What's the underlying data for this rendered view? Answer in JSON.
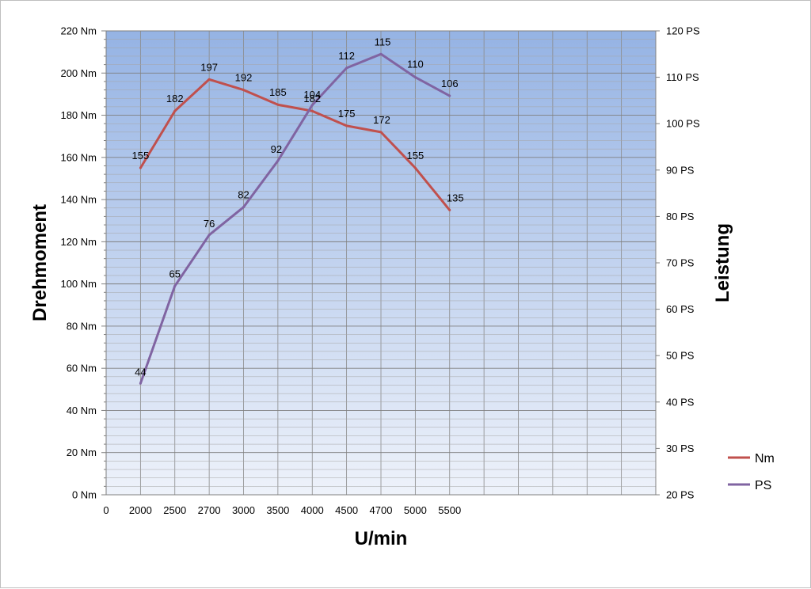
{
  "chart_data": {
    "type": "line",
    "categories": [
      "0",
      "2000",
      "2500",
      "2700",
      "3000",
      "3500",
      "4000",
      "4500",
      "4700",
      "5000",
      "5500",
      "",
      "",
      "",
      "",
      ""
    ],
    "series": [
      {
        "name": "Nm",
        "axis": "left",
        "color": "#c0504d",
        "values": [
          null,
          155,
          182,
          197,
          192,
          185,
          182,
          175,
          172,
          155,
          135,
          null,
          null,
          null,
          null,
          null
        ]
      },
      {
        "name": "PS",
        "axis": "right",
        "color": "#8064a2",
        "values": [
          null,
          44,
          65,
          76,
          82,
          92,
          104,
          112,
          115,
          110,
          106,
          null,
          null,
          null,
          null,
          null
        ]
      }
    ],
    "xlabel": "U/min",
    "ylabel": "Drehmoment",
    "y2label": "Leistung",
    "ylim": [
      0,
      220
    ],
    "y2lim": [
      20,
      120
    ],
    "yticks": [
      "0 Nm",
      "20 Nm",
      "40 Nm",
      "60 Nm",
      "80 Nm",
      "100 Nm",
      "120 Nm",
      "140 Nm",
      "160 Nm",
      "180 Nm",
      "200 Nm",
      "220 Nm"
    ],
    "y2ticks": [
      "20 PS",
      "30 PS",
      "40 PS",
      "50 PS",
      "60 PS",
      "70 PS",
      "80 PS",
      "90 PS",
      "100 PS",
      "110 PS",
      "120 PS"
    ],
    "grid": true,
    "legend_position": "right",
    "plot_background": "vertical gradient, blue top to light bottom"
  }
}
